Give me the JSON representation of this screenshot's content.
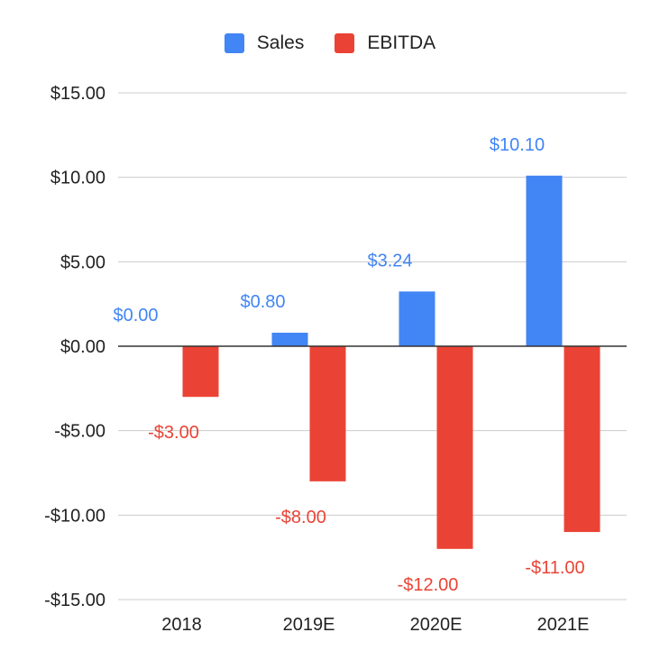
{
  "chart_data": {
    "type": "bar",
    "categories": [
      "2018",
      "2019E",
      "2020E",
      "2021E"
    ],
    "series": [
      {
        "name": "Sales",
        "color": "#4285f4",
        "values": [
          0.0,
          0.8,
          3.24,
          10.1
        ],
        "labels": [
          "$0.00",
          "$0.80",
          "$3.24",
          "$10.10"
        ]
      },
      {
        "name": "EBITDA",
        "color": "#ea4335",
        "values": [
          -3.0,
          -8.0,
          -12.0,
          -11.0
        ],
        "labels": [
          "-$3.00",
          "-$8.00",
          "-$12.00",
          "-$11.00"
        ]
      }
    ],
    "ylim": [
      -15,
      15
    ],
    "yticks": [
      15,
      10,
      5,
      0,
      -5,
      -10,
      -15
    ],
    "ytick_labels": [
      "$15.00",
      "$10.00",
      "$5.00",
      "$0.00",
      "-$5.00",
      "-$10.00",
      "-$15.00"
    ],
    "title": "",
    "xlabel": "",
    "ylabel": "",
    "legend_position": "top",
    "grid": true
  }
}
